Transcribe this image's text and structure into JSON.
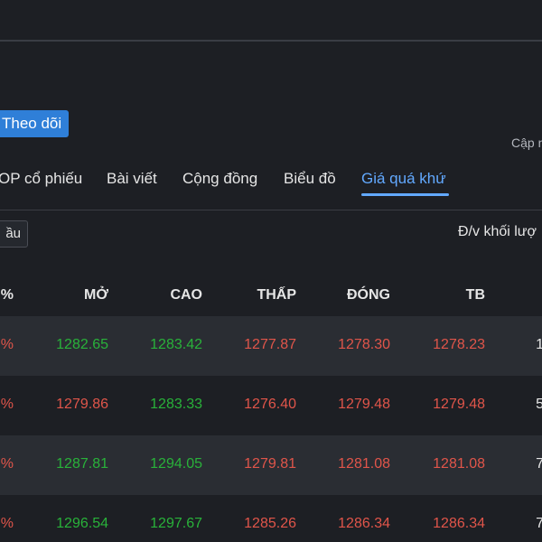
{
  "header": {
    "follow_label": "Theo dõi",
    "update_label": "Cập n"
  },
  "tabs": [
    {
      "label": "OP cổ phiếu",
      "active": false
    },
    {
      "label": "Bài viết",
      "active": false
    },
    {
      "label": "Cộng đồng",
      "active": false
    },
    {
      "label": "Biểu đồ",
      "active": false
    },
    {
      "label": "Giá quá khứ",
      "active": true
    }
  ],
  "toolbar": {
    "period_label": "ầu",
    "unit_label": "Đ/v khối lượ"
  },
  "table": {
    "columns": [
      "%",
      "MỞ",
      "CAO",
      "THẤP",
      "ĐÓNG",
      "TB"
    ],
    "rows": [
      {
        "pct": "%",
        "open": "1282.65",
        "high": "1283.42",
        "low": "1277.87",
        "close": "1278.30",
        "avg": "1278.23",
        "vol": "1",
        "open_dir": "up",
        "high_dir": "up",
        "low_dir": "down",
        "close_dir": "down",
        "avg_dir": "down"
      },
      {
        "pct": "%",
        "open": "1279.86",
        "high": "1283.33",
        "low": "1276.40",
        "close": "1279.48",
        "avg": "1279.48",
        "vol": "5",
        "open_dir": "down",
        "high_dir": "up",
        "low_dir": "down",
        "close_dir": "down",
        "avg_dir": "down"
      },
      {
        "pct": "%",
        "open": "1287.81",
        "high": "1294.05",
        "low": "1279.81",
        "close": "1281.08",
        "avg": "1281.08",
        "vol": "7",
        "open_dir": "up",
        "high_dir": "up",
        "low_dir": "down",
        "close_dir": "down",
        "avg_dir": "down"
      },
      {
        "pct": "%",
        "open": "1296.54",
        "high": "1297.67",
        "low": "1285.26",
        "close": "1286.34",
        "avg": "1286.34",
        "vol": "7",
        "open_dir": "up",
        "high_dir": "up",
        "low_dir": "down",
        "close_dir": "down",
        "avg_dir": "down"
      }
    ]
  },
  "colors": {
    "background": "#1d1f24",
    "row_alt": "#2a2d33",
    "accent": "#62a9ff",
    "button": "#2f7fd8",
    "up": "#29b23a",
    "down": "#e0554a"
  }
}
